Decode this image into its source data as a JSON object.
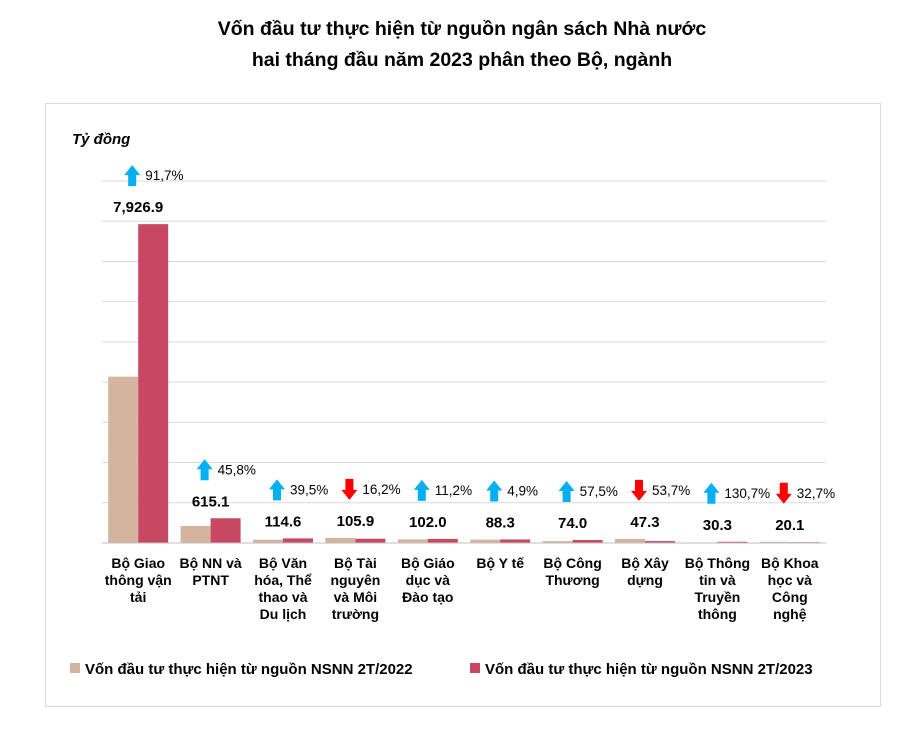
{
  "chart_data": {
    "type": "bar",
    "title_lines": [
      "Vốn đầu tư thực hiện từ nguồn ngân sách Nhà nước",
      "hai tháng đầu năm 2023 phân theo Bộ, ngành"
    ],
    "ylabel": "Tỷ đồng",
    "ylim": [
      0,
      9000
    ],
    "gridline_step": 1000,
    "y_tick_labels_shown": false,
    "categories": [
      [
        "Bộ Giao",
        "thông vận",
        "tải"
      ],
      [
        "Bộ NN và",
        "PTNT"
      ],
      [
        "Bộ Văn",
        "hóa, Thể",
        "thao và",
        "Du lịch"
      ],
      [
        "Bộ Tài",
        "nguyên",
        "và Môi",
        "trường"
      ],
      [
        "Bộ Giáo",
        "dục và",
        "Đào tạo"
      ],
      [
        "Bộ Y tế"
      ],
      [
        "Bộ Công",
        "Thương"
      ],
      [
        "Bộ Xây",
        "dựng"
      ],
      [
        "Bộ Thông",
        "tin và",
        "Truyền",
        "thông"
      ],
      [
        "Bộ Khoa",
        "học và",
        "Công",
        "nghệ"
      ]
    ],
    "series": [
      {
        "name": "Vốn đầu tư thực hiện từ nguồn NSNN 2T/2022",
        "color": "#d4b49e",
        "values": [
          4136.0,
          422.3,
          82.2,
          126.3,
          91.7,
          84.2,
          47.0,
          102.2,
          13.1,
          29.9
        ]
      },
      {
        "name": "Vốn đầu tư thực hiện từ nguồn NSNN 2T/2023",
        "color": "#c84864",
        "values": [
          7926.9,
          615.1,
          114.6,
          105.9,
          102.0,
          88.3,
          74.0,
          47.3,
          30.3,
          20.1
        ]
      }
    ],
    "value_labels": [
      "7,926.9",
      "615.1",
      "114.6",
      "105.9",
      "102.0",
      "88.3",
      "74.0",
      "47.3",
      "30.3",
      "20.1"
    ],
    "changes": [
      {
        "direction": "up",
        "text": "91,7%"
      },
      {
        "direction": "up",
        "text": "45,8%"
      },
      {
        "direction": "up",
        "text": "39,5%"
      },
      {
        "direction": "down",
        "text": "16,2%"
      },
      {
        "direction": "up",
        "text": "11,2%"
      },
      {
        "direction": "up",
        "text": "4,9%"
      },
      {
        "direction": "up",
        "text": "57,5%"
      },
      {
        "direction": "down",
        "text": "53,7%"
      },
      {
        "direction": "up",
        "text": "130,7%"
      },
      {
        "direction": "down",
        "text": "32,7%"
      }
    ],
    "colors": {
      "up_arrow": "#00b0f0",
      "down_arrow": "#ff0000",
      "gridline": "#d9d9d9",
      "axis": "#bfbfbf"
    },
    "legend_position": "bottom"
  }
}
